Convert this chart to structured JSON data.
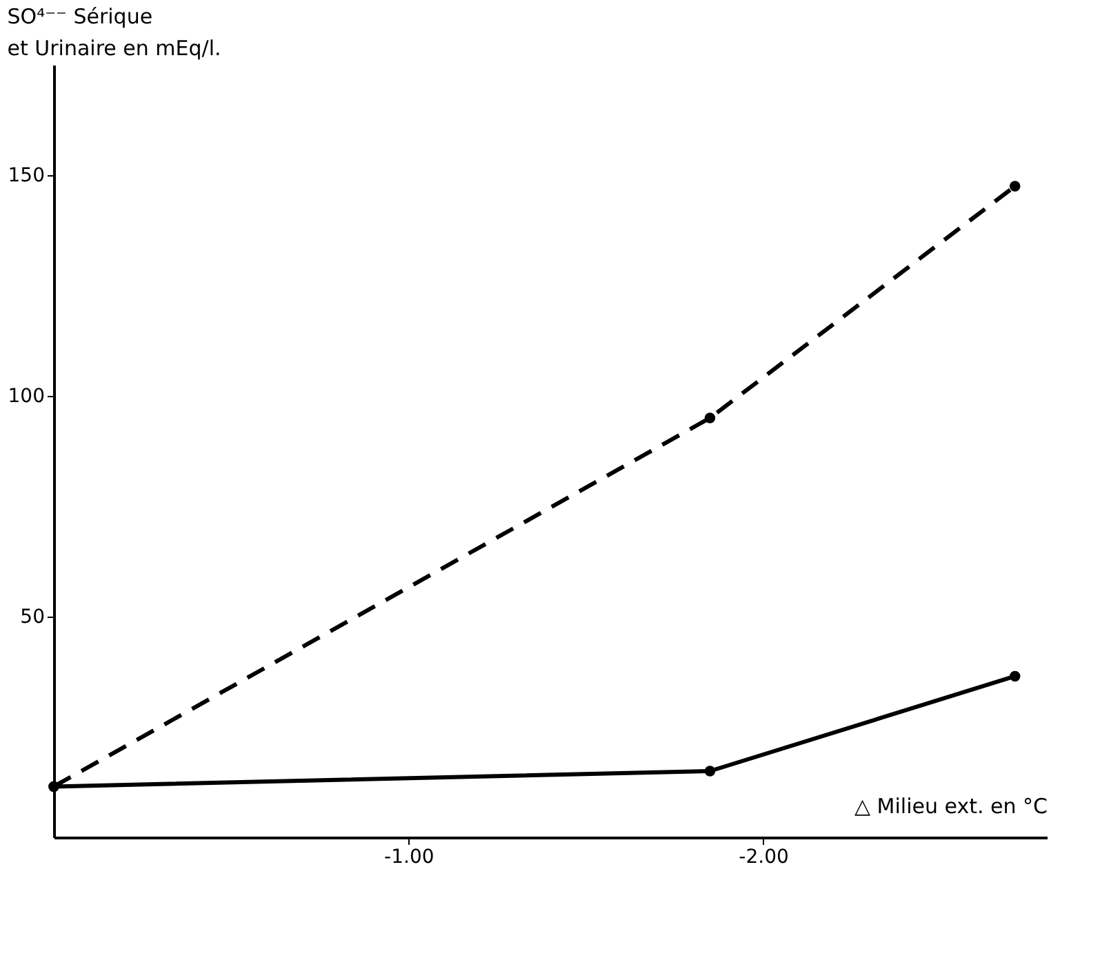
{
  "chart_data": {
    "type": "line",
    "title": "SO⁴⁻⁻ Sérique",
    "subtitle": "et Urinaire en mEq/l.",
    "xlabel": "△ Milieu ext. en °C",
    "x": [
      0,
      -1.85,
      -2.71
    ],
    "series": [
      {
        "color": "#000000",
        "line_style": "dashed",
        "values": [
          11.5,
          95,
          147.5
        ]
      },
      {
        "color": "#000000",
        "line_style": "solid",
        "values": [
          11.5,
          15,
          36.5
        ]
      }
    ],
    "xlim": [
      0,
      -2.8
    ],
    "xticks": [
      {
        "value": -1,
        "label": "-1.00"
      },
      {
        "value": -2,
        "label": "-2.00"
      }
    ],
    "ylim": [
      0,
      175
    ],
    "yticks": [
      50,
      100,
      150
    ],
    "marker": "circle",
    "grid": false
  }
}
